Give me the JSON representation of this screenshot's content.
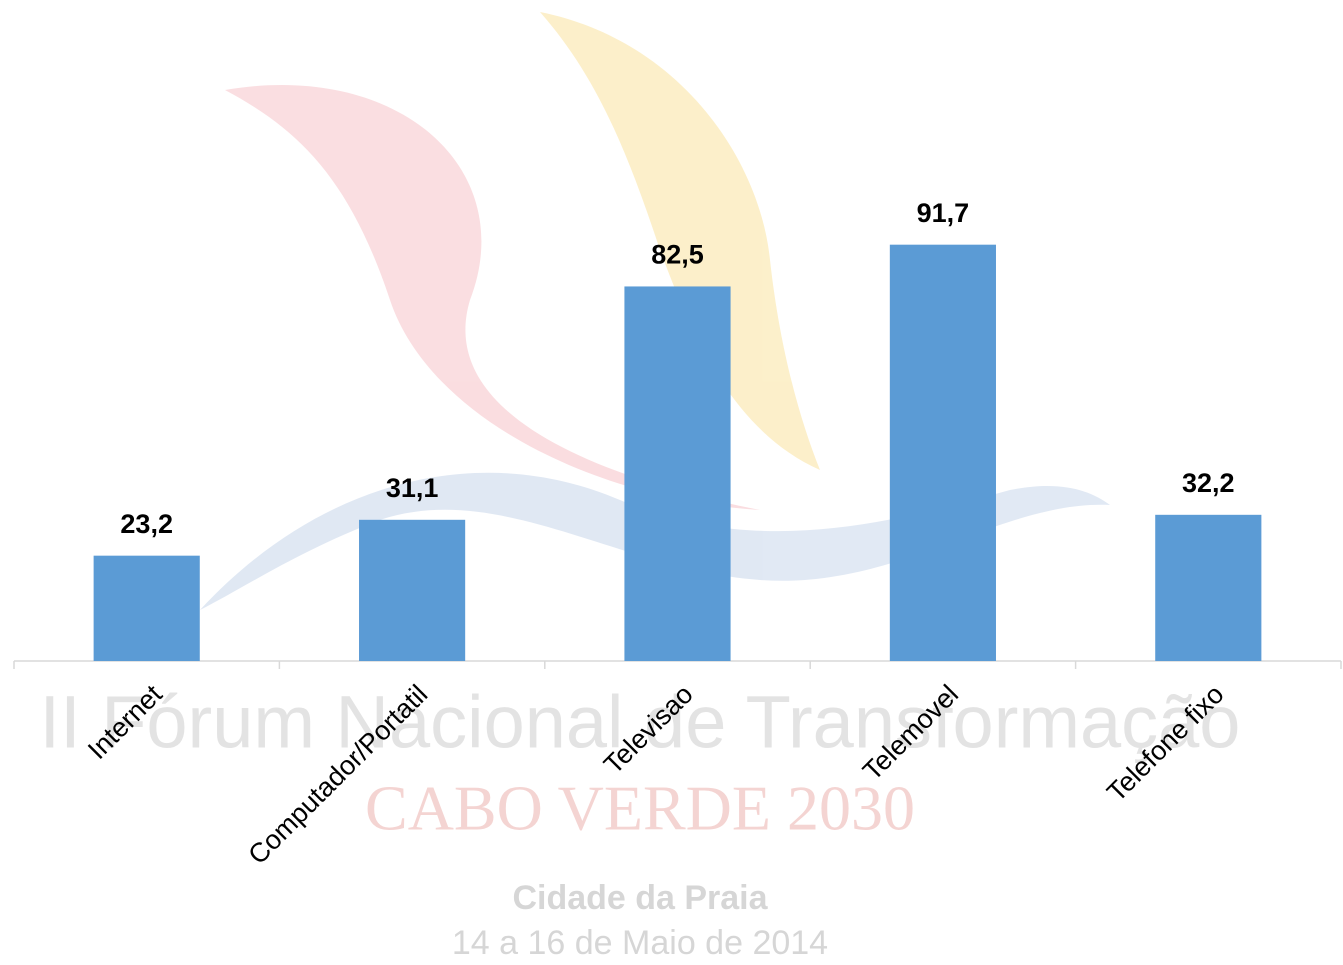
{
  "chart_data": {
    "type": "bar",
    "categories": [
      "Internet",
      "Computador/Portatil",
      "Televisao",
      "Telemovel",
      "Telefone fixo"
    ],
    "values": [
      23.2,
      31.1,
      82.5,
      91.7,
      32.2
    ],
    "value_labels": [
      "23,2",
      "31,1",
      "82,5",
      "91,7",
      "32,2"
    ],
    "color": "#5b9bd5",
    "ylim": [
      0,
      100
    ],
    "grid": false,
    "watermark": [
      "II Fórum Nacional de Transformação",
      "CABO VERDE 2030",
      "Cidade da Praia",
      "14 a 16 de Maio de 2014"
    ]
  }
}
